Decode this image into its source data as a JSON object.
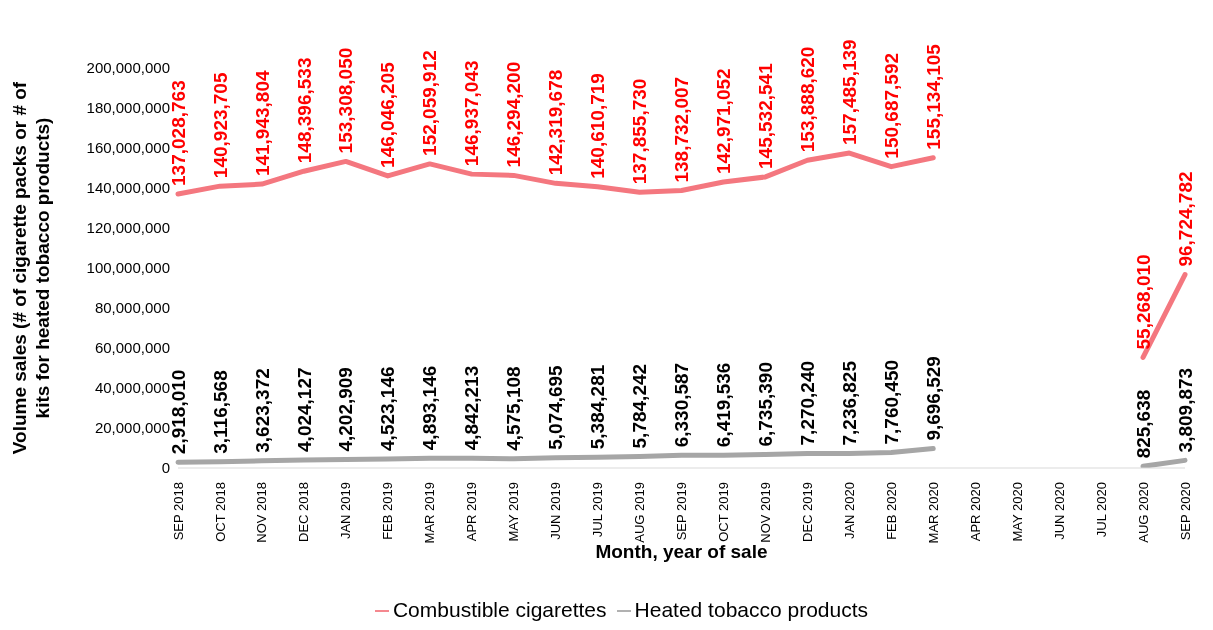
{
  "chart_data": {
    "type": "line",
    "xlabel": "Month, year of sale",
    "ylabel": "Volume sales (# of cigarette packs or # of kits for heated tobacco products)",
    "categories": [
      "SEP 2018",
      "OCT 2018",
      "NOV 2018",
      "DEC 2018",
      "JAN 2019",
      "FEB 2019",
      "MAR 2019",
      "APR 2019",
      "MAY 2019",
      "JUN 2019",
      "JUL 2019",
      "AUG 2019",
      "SEP 2019",
      "OCT 2019",
      "NOV 2019",
      "DEC 2019",
      "JAN 2020",
      "FEB 2020",
      "MAR 2020",
      "APR 2020",
      "MAY 2020",
      "JUN 2020",
      "JUL 2020",
      "AUG 2020",
      "SEP 2020"
    ],
    "series": [
      {
        "name": "Combustible cigarettes",
        "color": "#f4777f",
        "values": [
          137028763,
          140923705,
          141943804,
          148396533,
          153308050,
          146046205,
          152059912,
          146937043,
          146294200,
          142319678,
          140610719,
          137855730,
          138732007,
          142971052,
          145532541,
          153888620,
          157485139,
          150687592,
          155134105,
          null,
          null,
          null,
          null,
          55268010,
          96724782
        ],
        "value_labels": [
          "137,028,763",
          "140,923,705",
          "141,943,804",
          "148,396,533",
          "153,308,050",
          "146,046,205",
          "152,059,912",
          "146,937,043",
          "146,294,200",
          "142,319,678",
          "140,610,719",
          "137,855,730",
          "138,732,007",
          "142,971,052",
          "145,532,541",
          "153,888,620",
          "157,485,139",
          "150,687,592",
          "155,134,105",
          null,
          null,
          null,
          null,
          "55,268,010",
          "96,724,782"
        ]
      },
      {
        "name": "Heated tobacco products",
        "color": "#a6a6a6",
        "values": [
          2918010,
          3116568,
          3623372,
          4024127,
          4202909,
          4523146,
          4893146,
          4842213,
          4575108,
          5074695,
          5384281,
          5784242,
          6330587,
          6419536,
          6735390,
          7270240,
          7236825,
          7760450,
          9696529,
          null,
          null,
          null,
          null,
          825638,
          3809873
        ],
        "value_labels": [
          "2,918,010",
          "3,116,568",
          "3,623,372",
          "4,024,127",
          "4,202,909",
          "4,523,146",
          "4,893,146",
          "4,842,213",
          "4,575,108",
          "5,074,695",
          "5,384,281",
          "5,784,242",
          "6,330,587",
          "6,419,536",
          "6,735,390",
          "7,270,240",
          "7,236,825",
          "7,760,450",
          "9,696,529",
          null,
          null,
          null,
          null,
          "825,638",
          "3,809,873"
        ]
      }
    ],
    "ylim": [
      0,
      200000000
    ],
    "yticks": [
      0,
      {
        "value": 20000000,
        "label": "20,000,000"
      },
      {
        "value": 40000000,
        "label": "40,000,000"
      },
      {
        "value": 60000000,
        "label": "60,000,000"
      },
      {
        "value": 80000000,
        "label": "80,000,000"
      },
      {
        "value": 100000000,
        "label": "100,000,000"
      },
      {
        "value": 120000000,
        "label": "120,000,000"
      },
      {
        "value": 140000000,
        "label": "140,000,000"
      },
      {
        "value": 160000000,
        "label": "160,000,000"
      },
      {
        "value": 180000000,
        "label": "180,000,000"
      },
      {
        "value": 200000000,
        "label": "200,000,000"
      }
    ],
    "legend": "bottom",
    "marker": "none",
    "line_style": "solid"
  }
}
